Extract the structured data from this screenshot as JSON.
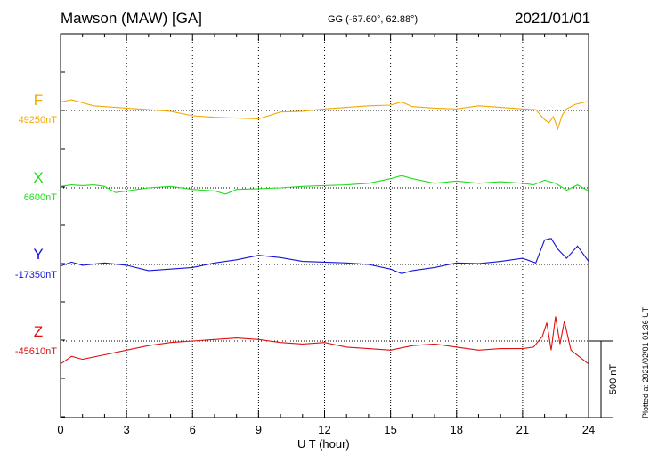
{
  "header": {
    "station": "Mawson (MAW)  [GA]",
    "coords": "GG (-67.60°,  62.88°)",
    "date": "2021/01/01"
  },
  "footer": {
    "xlabel": "U T (hour)",
    "plotted": "Plotted at 2021/02/01 01:36 UT"
  },
  "chart_data": {
    "type": "line",
    "title": "Mawson (MAW)  [GA]",
    "xlabel": "U T (hour)",
    "xlim": [
      0,
      24
    ],
    "xticks": [
      "0",
      "3",
      "6",
      "9",
      "12",
      "15",
      "18",
      "21",
      "24"
    ],
    "grid": "vertical dotted every 3 h",
    "ylim_per_panel_nT": [
      -500,
      500
    ],
    "scale_bar": "500 nT",
    "series": [
      {
        "name": "F",
        "baseline": "49250nT",
        "color": "#f2a900",
        "x": [
          0,
          0.5,
          1,
          1.5,
          2,
          3,
          4,
          5,
          6,
          7,
          8,
          9,
          10,
          11,
          12,
          13,
          14,
          15,
          15.5,
          16,
          17,
          18,
          19,
          20,
          21,
          21.6,
          22,
          22.2,
          22.4,
          22.6,
          22.8,
          23,
          23.4,
          24
        ],
        "values": [
          55,
          70,
          50,
          30,
          25,
          15,
          5,
          -5,
          -35,
          -45,
          -50,
          -55,
          -10,
          -5,
          10,
          20,
          30,
          35,
          55,
          25,
          15,
          10,
          30,
          20,
          10,
          5,
          -60,
          -80,
          -40,
          -120,
          -30,
          10,
          40,
          60
        ]
      },
      {
        "name": "X",
        "baseline": "6600nT",
        "color": "#22dd22",
        "x": [
          0,
          0.5,
          1,
          1.5,
          2,
          2.5,
          3,
          4,
          5,
          6,
          7,
          7.5,
          8,
          9,
          10,
          11,
          12,
          13,
          14,
          15,
          15.5,
          16,
          17,
          18,
          19,
          20,
          21,
          21.5,
          22,
          22.5,
          23,
          23.5,
          24
        ],
        "values": [
          10,
          20,
          15,
          20,
          10,
          -30,
          -20,
          0,
          10,
          -10,
          -20,
          -40,
          -10,
          -5,
          0,
          10,
          15,
          20,
          30,
          60,
          80,
          60,
          30,
          45,
          30,
          40,
          30,
          20,
          50,
          30,
          -15,
          20,
          -20
        ]
      },
      {
        "name": "Y",
        "baseline": "-17350nT",
        "color": "#1414d8",
        "x": [
          0,
          0.5,
          1,
          2,
          3,
          4,
          5,
          6,
          7,
          8,
          9,
          10,
          11,
          12,
          13,
          14,
          15,
          15.5,
          16,
          17,
          18,
          19,
          20,
          21,
          21.6,
          22,
          22.3,
          22.6,
          23,
          23.5,
          24
        ],
        "values": [
          -10,
          15,
          -5,
          10,
          -5,
          -40,
          -30,
          -20,
          10,
          30,
          60,
          45,
          20,
          15,
          10,
          0,
          -30,
          -60,
          -40,
          -20,
          10,
          5,
          20,
          40,
          10,
          160,
          170,
          100,
          40,
          120,
          20
        ]
      },
      {
        "name": "Z",
        "baseline": "-45610nT",
        "color": "#e01010",
        "x": [
          0,
          0.5,
          1,
          2,
          3,
          4,
          5,
          6,
          7,
          8,
          9,
          10,
          11,
          12,
          13,
          14,
          15,
          16,
          17,
          18,
          19,
          20,
          21,
          21.5,
          21.9,
          22.1,
          22.3,
          22.5,
          22.7,
          22.9,
          23.2,
          24
        ],
        "values": [
          -150,
          -100,
          -120,
          -90,
          -60,
          -30,
          -10,
          0,
          10,
          20,
          10,
          -10,
          -20,
          -10,
          -40,
          -50,
          -60,
          -30,
          -20,
          -40,
          -60,
          -50,
          -50,
          -40,
          30,
          120,
          -60,
          160,
          -20,
          130,
          -60,
          -150
        ]
      }
    ]
  }
}
